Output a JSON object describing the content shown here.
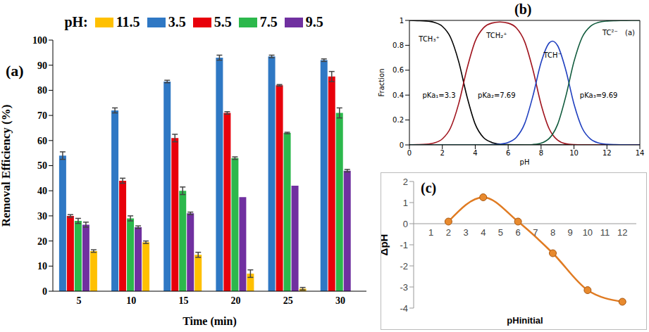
{
  "chart_data": [
    {
      "type": "bar",
      "panel_label": "(a)",
      "legend_title": "pH:",
      "legend": "top",
      "grid": false,
      "x_label": "Time (min)",
      "y_label": "Removal Efficiency (%)",
      "categories": [
        "5",
        "10",
        "15",
        "20",
        "25",
        "30"
      ],
      "series": [
        {
          "name": "3.5",
          "color": "#2f78c4",
          "values": [
            54,
            72,
            83.5,
            93,
            93.5,
            92
          ],
          "errors": [
            1.5,
            1,
            0.5,
            1,
            0.5,
            0.5
          ]
        },
        {
          "name": "5.5",
          "color": "#e8000b",
          "values": [
            30,
            44,
            61,
            71,
            82,
            85.5
          ],
          "errors": [
            0.5,
            1,
            1.5,
            0.5,
            0.3,
            2
          ]
        },
        {
          "name": "7.5",
          "color": "#2cb84c",
          "values": [
            28,
            29,
            40,
            53,
            63,
            71
          ],
          "errors": [
            1,
            1,
            1.5,
            0.5,
            0.3,
            2
          ]
        },
        {
          "name": "9.5",
          "color": "#7030a0",
          "values": [
            26.5,
            25.5,
            31,
            37.5,
            42,
            48
          ],
          "errors": [
            1,
            0.5,
            0.5,
            0,
            0,
            0.5
          ]
        },
        {
          "name": "11.5",
          "color": "#ffc000",
          "values": [
            16,
            19.5,
            14.5,
            7,
            1,
            null
          ],
          "errors": [
            0.5,
            0.5,
            1,
            1.5,
            0.5,
            null
          ]
        }
      ],
      "ylim": [
        0,
        100
      ],
      "yticks": [
        0,
        10,
        20,
        30,
        40,
        50,
        60,
        70,
        80,
        90,
        100
      ]
    },
    {
      "type": "line",
      "panel_label": "(b)",
      "grid": false,
      "annotations": [
        "(a)",
        "pKa₁=3.3",
        "pKa₂=7.69",
        "pKa₃=9.69"
      ],
      "x_label": "pH",
      "y_label": "Fraction",
      "x": [
        0,
        0.5,
        1,
        1.5,
        2,
        2.5,
        3,
        3.5,
        4,
        4.5,
        5,
        5.5,
        6,
        6.5,
        7,
        7.5,
        8,
        8.5,
        8.69,
        9,
        9.5,
        10,
        10.5,
        11,
        11.5,
        12,
        12.5,
        13,
        13.5,
        14
      ],
      "series": [
        {
          "name": "TCH₃⁺",
          "color": "#000000",
          "values": [
            1.0,
            0.998,
            0.995,
            0.984,
            0.952,
            0.863,
            0.666,
            0.387,
            0.166,
            0.059,
            0.02,
            0.006,
            0.002,
            0.001,
            0,
            0,
            0,
            0,
            0,
            0,
            0,
            0,
            0,
            0,
            0,
            0,
            0,
            0,
            0,
            0
          ]
        },
        {
          "name": "TCH₂⁺",
          "color": "#a0141e",
          "values": [
            0.001,
            0.002,
            0.005,
            0.016,
            0.048,
            0.137,
            0.334,
            0.613,
            0.834,
            0.94,
            0.978,
            0.987,
            0.978,
            0.939,
            0.83,
            0.606,
            0.325,
            0.127,
            0.083,
            0.039,
            0.009,
            0.002,
            0,
            0,
            0,
            0,
            0,
            0,
            0,
            0
          ]
        },
        {
          "name": "TCH⁻",
          "color": "#1f3fbf",
          "values": [
            0,
            0,
            0,
            0,
            0,
            0,
            0,
            0,
            0,
            0,
            0.002,
            0.006,
            0.02,
            0.061,
            0.17,
            0.391,
            0.662,
            0.82,
            0.833,
            0.798,
            0.602,
            0.328,
            0.134,
            0.047,
            0.015,
            0.005,
            0.002,
            0.001,
            0,
            0
          ]
        },
        {
          "name": "TC²⁻",
          "color": "#0f5a3c",
          "values": [
            0,
            0,
            0,
            0,
            0,
            0,
            0,
            0,
            0,
            0,
            0,
            0,
            0,
            0,
            0,
            0.003,
            0.014,
            0.053,
            0.083,
            0.163,
            0.389,
            0.67,
            0.866,
            0.953,
            0.985,
            0.995,
            0.998,
            0.999,
            1,
            1
          ]
        }
      ],
      "xlim": [
        0,
        14
      ],
      "xticks": [
        0,
        2,
        4,
        6,
        8,
        10,
        12,
        14
      ],
      "ylim": [
        0,
        1
      ],
      "yticks": [
        0,
        0.2,
        0.4,
        0.6,
        0.8,
        1
      ]
    },
    {
      "type": "line",
      "panel_label": "(c)",
      "grid": false,
      "marker": "circle",
      "x_label": "pHinitial",
      "y_label": "ΔpH",
      "x": [
        2,
        4,
        6,
        8,
        10,
        12
      ],
      "values": [
        0.1,
        1.25,
        0.1,
        -1.4,
        -3.15,
        -3.7
      ],
      "color": "#e07b22",
      "xlim": [
        0,
        12.8
      ],
      "xticks": [
        1,
        2,
        3,
        4,
        5,
        6,
        7,
        8,
        9,
        10,
        11,
        12
      ],
      "ylim": [
        -4,
        2
      ],
      "yticks": [
        -4,
        -3,
        -2,
        -1,
        0,
        1,
        2
      ]
    }
  ]
}
